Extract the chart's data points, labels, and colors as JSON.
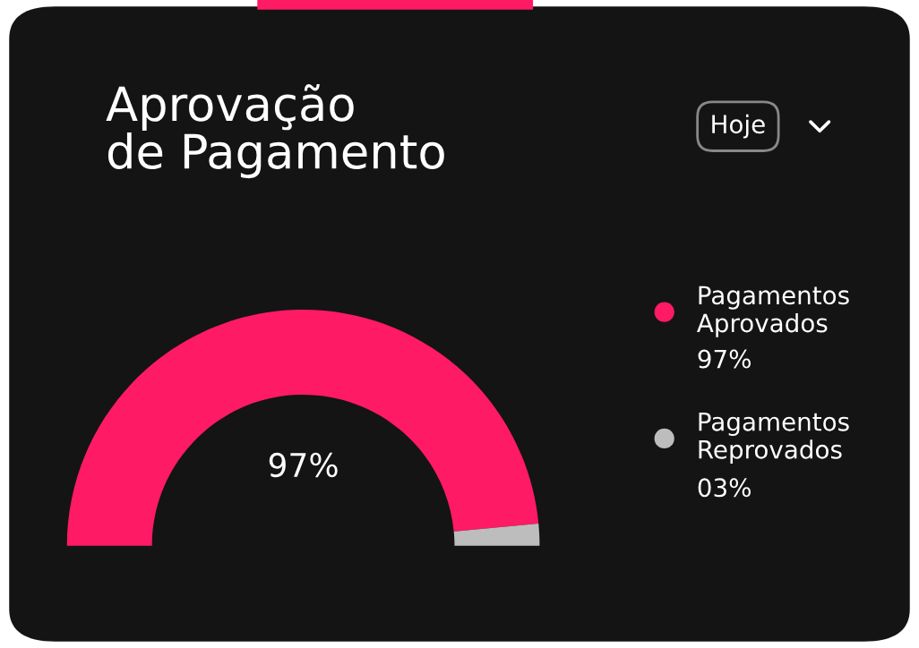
{
  "chart_data": {
    "type": "donut",
    "title": "Aprovação\nde Pagamento",
    "categories": [
      "Pagamentos\nAprovados",
      "Pagamentos\nReprovados"
    ],
    "values": [
      97,
      3
    ],
    "colors": [
      "#ff1a66",
      "#bdbdbd"
    ],
    "value_labels": [
      "97%",
      "03%"
    ],
    "legend": "right",
    "annotations": [
      "97%",
      "Hoje"
    ]
  }
}
